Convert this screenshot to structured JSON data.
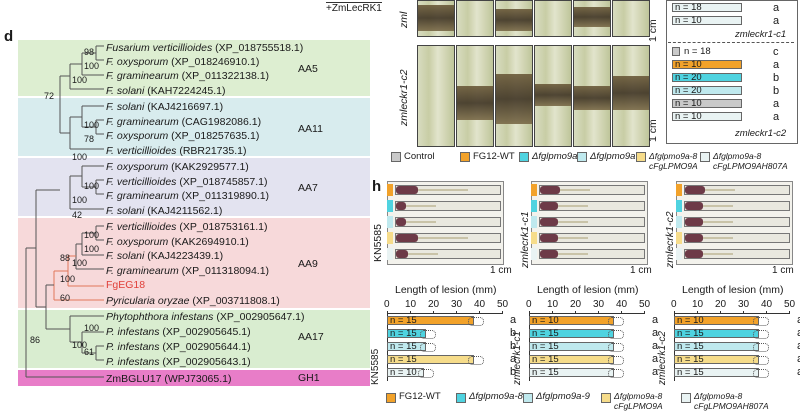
{
  "panel_d": {
    "label": "d",
    "families": [
      {
        "name": "AA5",
        "color": "#ddeed1"
      },
      {
        "name": "AA11",
        "color": "#d8ecee"
      },
      {
        "name": "AA7",
        "color": "#e3e3f0"
      },
      {
        "name": "AA9",
        "color": "#f7d9da"
      },
      {
        "name": "AA17",
        "color": "#d9edd0"
      },
      {
        "name": "GH1",
        "color": "#e87dc8"
      }
    ],
    "taxa": [
      {
        "sp": "Fusarium verticillioides",
        "id": "(XP_018755518.1)",
        "fam": "AA5"
      },
      {
        "sp": "F. oxysporum",
        "id": "(XP_018246910.1)",
        "fam": "AA5"
      },
      {
        "sp": "F. graminearum",
        "id": "(XP_011322138.1)",
        "fam": "AA5"
      },
      {
        "sp": "F. solani",
        "id": "(KAH7224245.1)",
        "fam": "AA5"
      },
      {
        "sp": "F. solani",
        "id": "(KAJ4216697.1)",
        "fam": "AA11"
      },
      {
        "sp": "F. graminearum",
        "id": "(CAG1982086.1)",
        "fam": "AA11"
      },
      {
        "sp": "F. oxysporum",
        "id": "(XP_018257635.1)",
        "fam": "AA11"
      },
      {
        "sp": "F. verticillioides",
        "id": "(RBR21735.1)",
        "fam": "AA11"
      },
      {
        "sp": "F. oxysporum",
        "id": "(KAK2929577.1)",
        "fam": "AA7"
      },
      {
        "sp": "F. verticillioides",
        "id": "(XP_018745857.1)",
        "fam": "AA7"
      },
      {
        "sp": "F. graminearum",
        "id": "(XP_011319890.1)",
        "fam": "AA7"
      },
      {
        "sp": "F. solani",
        "id": "(KAJ4211562.1)",
        "fam": "AA7"
      },
      {
        "sp": "F. verticillioides",
        "id": "(XP_018753161.1)",
        "fam": "AA9"
      },
      {
        "sp": "F. oxysporum",
        "id": "(KAK2694910.1)",
        "fam": "AA9"
      },
      {
        "sp": "F. solani",
        "id": "(KAJ4223439.1)",
        "fam": "AA9"
      },
      {
        "sp": "F. graminearum",
        "id": "(XP_011318094.1)",
        "fam": "AA9"
      },
      {
        "sp": "FgEG18",
        "id": "",
        "fam": "AA9",
        "highlight": true
      },
      {
        "sp": "Pyricularia oryzae",
        "id": "(XP_003711808.1)",
        "fam": "AA9"
      },
      {
        "sp": "Phytophthora infestans",
        "id": "(XP_002905647.1)",
        "fam": "AA17"
      },
      {
        "sp": "P. infestans",
        "id": "(XP_002905645.1)",
        "fam": "AA17"
      },
      {
        "sp": "P. infestans",
        "id": "(XP_002905644.1)",
        "fam": "AA17"
      },
      {
        "sp": "P. infestans",
        "id": "(XP_002905643.1)",
        "fam": "AA17"
      },
      {
        "sp": "ZmBGLU17",
        "id": "(WPJ73065.1)",
        "fam": "GH1",
        "upright": true
      }
    ],
    "bootstraps": [
      "98",
      "100",
      "100",
      "72",
      "100",
      "78",
      "100",
      "100",
      "100",
      "42",
      "100",
      "100",
      "100",
      "88",
      "100",
      "60",
      "100",
      "100",
      "61",
      "86"
    ]
  },
  "panel_top": {
    "header": "+ZmLecRK1",
    "rows": [
      "zmleckr1-c1",
      "zmleckr1-c2"
    ],
    "label_top_cut": "zml",
    "scale": "1 cm",
    "bars_c1": [
      {
        "n": "n = 18",
        "sig": "a"
      },
      {
        "n": "n = 10",
        "sig": "a"
      }
    ],
    "c1_note": "zmleckr1-c1",
    "bars_c2": [
      {
        "n": "n = 18",
        "sig": "c"
      },
      {
        "n": "n = 10",
        "sig": "a"
      },
      {
        "n": "n = 20",
        "sig": "b"
      },
      {
        "n": "n = 20",
        "sig": "b"
      },
      {
        "n": "n = 10",
        "sig": "a"
      },
      {
        "n": "n = 10",
        "sig": "a"
      }
    ],
    "c2_note": "zmleckr1-c2"
  },
  "legend_top": [
    {
      "label": "Control",
      "color": "#c9c9c9"
    },
    {
      "label": "FG12-WT",
      "color": "#f2a22a"
    },
    {
      "label": "Δfglpmo9a-8",
      "color": "#4fd3e0"
    },
    {
      "label": "Δfglpmo9a-9",
      "color": "#bfe9ee"
    },
    {
      "label": "Δfglpmo9a-8 cFgLPMO9A",
      "color": "#f6dc8a"
    },
    {
      "label": "Δfglpmo9a-8 cFgLPMO9AH807A",
      "color": "#e9f3f3"
    }
  ],
  "panel_h": {
    "label": "h",
    "cultivars": [
      {
        "name": "KN5585",
        "bars": [
          {
            "n": "n = 15",
            "value": 38,
            "color": "#f2a22a",
            "sig": "a"
          },
          {
            "n": "n = 15",
            "value": 17,
            "color": "#4fd3e0",
            "sig": "b"
          },
          {
            "n": "n = 15",
            "value": 17,
            "color": "#bfe9ee",
            "sig": "b"
          },
          {
            "n": "n = 15",
            "value": 38,
            "color": "#f6dc8a",
            "sig": "a"
          },
          {
            "n": "n = 10",
            "value": 16,
            "color": "#e9f3f3",
            "sig": "b"
          }
        ]
      },
      {
        "name": "zmlecrk1-c1",
        "bars": [
          {
            "n": "n = 10",
            "value": 37,
            "color": "#f2a22a",
            "sig": "a"
          },
          {
            "n": "n = 15",
            "value": 37,
            "color": "#4fd3e0",
            "sig": "a"
          },
          {
            "n": "n = 15",
            "value": 37,
            "color": "#bfe9ee",
            "sig": "a"
          },
          {
            "n": "n = 15",
            "value": 37,
            "color": "#f6dc8a",
            "sig": "a"
          },
          {
            "n": "n = 15",
            "value": 37,
            "color": "#e9f3f3",
            "sig": "a"
          }
        ]
      },
      {
        "name": "zmlecrk1-c2",
        "bars": [
          {
            "n": "n = 10",
            "value": 37,
            "color": "#f2a22a",
            "sig": "a"
          },
          {
            "n": "n = 15",
            "value": 37,
            "color": "#4fd3e0",
            "sig": "a"
          },
          {
            "n": "n = 15",
            "value": 37,
            "color": "#bfe9ee",
            "sig": "a"
          },
          {
            "n": "n = 15",
            "value": 37,
            "color": "#f6dc8a",
            "sig": "a"
          },
          {
            "n": "n = 15",
            "value": 37,
            "color": "#e9f3f3",
            "sig": "a"
          }
        ]
      }
    ],
    "axis_title": "Length of lesion (mm)",
    "ticks": [
      "0",
      "10",
      "20",
      "30",
      "40",
      "50"
    ],
    "scale": "1 cm",
    "legend": [
      {
        "label": "FG12-WT",
        "color": "#f2a22a"
      },
      {
        "label": "Δfglpmo9a-8",
        "color": "#4fd3e0"
      },
      {
        "label": "Δfglpmo9a-9",
        "color": "#bfe9ee"
      },
      {
        "label": "Δfglpmo9a-8 cFgLPMO9A",
        "color": "#f6dc8a"
      },
      {
        "label": "Δfglpmo9a-8 cFgLPMO9AH807A",
        "color": "#e9f3f3"
      }
    ]
  },
  "chart_data": [
    {
      "type": "bar",
      "title": "KN5585",
      "xlabel": "Length of lesion (mm)",
      "xlim": [
        0,
        50
      ],
      "categories": [
        "FG12-WT",
        "Δfglpmo9a-8",
        "Δfglpmo9a-9",
        "Δfglpmo9a-8 cFgLPMO9A",
        "Δfglpmo9a-8 cFgLPMO9AH807A"
      ],
      "values": [
        38,
        17,
        17,
        38,
        16
      ]
    },
    {
      "type": "bar",
      "title": "zmlecrk1-c1",
      "xlabel": "Length of lesion (mm)",
      "xlim": [
        0,
        50
      ],
      "categories": [
        "FG12-WT",
        "Δfglpmo9a-8",
        "Δfglpmo9a-9",
        "Δfglpmo9a-8 cFgLPMO9A",
        "Δfglpmo9a-8 cFgLPMO9AH807A"
      ],
      "values": [
        37,
        37,
        37,
        37,
        37
      ]
    },
    {
      "type": "bar",
      "title": "zmlecrk1-c2",
      "xlabel": "Length of lesion (mm)",
      "xlim": [
        0,
        50
      ],
      "categories": [
        "FG12-WT",
        "Δfglpmo9a-8",
        "Δfglpmo9a-9",
        "Δfglpmo9a-8 cFgLPMO9A",
        "Δfglpmo9a-8 cFgLPMO9AH807A"
      ],
      "values": [
        37,
        37,
        37,
        37,
        37
      ]
    }
  ]
}
